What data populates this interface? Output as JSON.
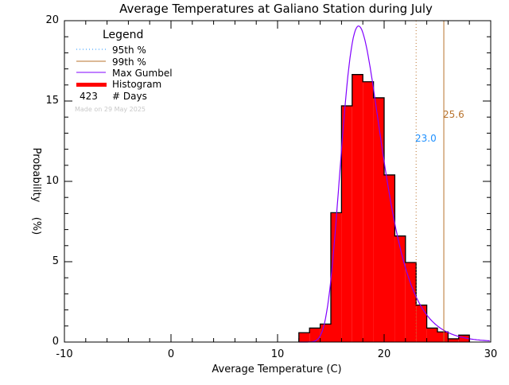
{
  "chart_data": {
    "type": "bar",
    "title": "Average Temperatures at Galiano Station during July",
    "xlabel": "Average Temperature (C)",
    "ylabel": "Probability",
    "ylabel_units": "(%)",
    "xlim": [
      -10,
      30
    ],
    "ylim": [
      0,
      20
    ],
    "xticks": [
      "-10",
      "0",
      "10",
      "20",
      "30"
    ],
    "xtick_values": [
      -10,
      0,
      10,
      20,
      30
    ],
    "yticks": [
      "0",
      "5",
      "10",
      "15",
      "20"
    ],
    "ytick_values": [
      0,
      5,
      10,
      15,
      20
    ],
    "histogram": {
      "bin_width": 1,
      "bin_starts": [
        12,
        13,
        14,
        15,
        16,
        17,
        18,
        19,
        20,
        21,
        22,
        23,
        24,
        25,
        26,
        27
      ],
      "values": [
        0.58,
        0.87,
        1.12,
        8.05,
        14.7,
        16.65,
        16.2,
        15.2,
        10.4,
        6.6,
        4.95,
        2.3,
        0.87,
        0.63,
        0.2,
        0.43
      ]
    },
    "gumbel": {
      "mu": 17.6,
      "beta": 1.87
    },
    "percentile_95": {
      "value": 23.0,
      "label": "23.0"
    },
    "percentile_99": {
      "value": 25.6,
      "label": "25.6"
    },
    "legend": {
      "title": "Legend",
      "placement": "top-left",
      "items": [
        "95th %",
        "99th %",
        "Max Gumbel",
        "Histogram"
      ],
      "days_count": "423",
      "days_label": "# Days"
    },
    "made_on": "Made on 29 May 2025",
    "colors": {
      "histogram": "#ff0000",
      "gumbel": "#8000ff",
      "p95": "#1e90ff",
      "p99": "#b8732d"
    }
  }
}
